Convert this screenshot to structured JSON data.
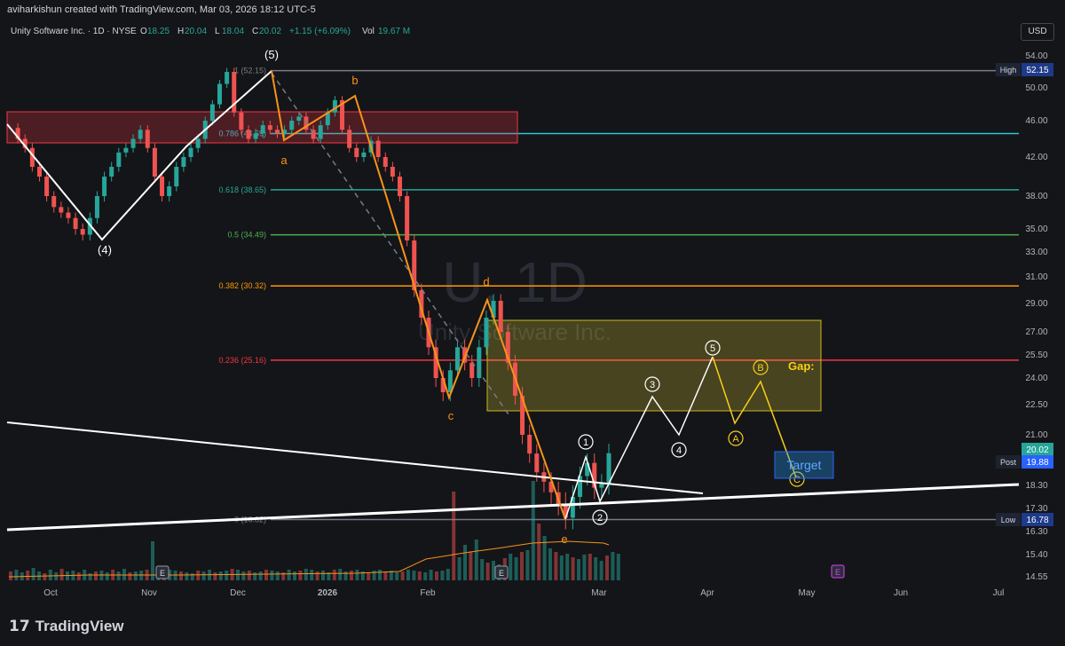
{
  "attribution": "aviharkishun created with TradingView.com, Mar 03, 2026 18:12 UTC-5",
  "currency_button": "USD",
  "brand": "TradingView",
  "colors": {
    "bg": "#141518",
    "up": "#26a69a",
    "down": "#ef5350",
    "orange": "#f7931a",
    "text": "#d1d4dc",
    "white": "#ffffff"
  },
  "chart_data": {
    "type": "candlestick",
    "symbol": "Unity Software Inc. · 1D · NYSE",
    "ohlc": {
      "O": "18.25",
      "H": "20.04",
      "L": "18.04",
      "C": "20.02",
      "change": "+1.15 (+6.09%)",
      "Vol": "19.67 M"
    },
    "watermark": {
      "ticker": "U, 1D",
      "name": "Unity Software Inc."
    },
    "y_axis_ticks": [
      "54.00",
      "50.00",
      "46.00",
      "42.00",
      "38.00",
      "35.00",
      "33.00",
      "31.00",
      "29.00",
      "27.00",
      "25.50",
      "24.00",
      "22.50",
      "21.00",
      "18.30",
      "17.30",
      "16.30",
      "15.40",
      "14.55"
    ],
    "x_axis_ticks": [
      "Oct",
      "Nov",
      "Dec",
      "2026",
      "Feb",
      "Mar",
      "Apr",
      "May",
      "Jun",
      "Jul"
    ],
    "price_labels": [
      {
        "name": "High",
        "value": "52.15"
      },
      {
        "name": "Last",
        "value": "20.02"
      },
      {
        "name": "Post",
        "value": "19.88"
      },
      {
        "name": "Low",
        "value": "16.78"
      }
    ],
    "fib_levels": [
      {
        "label": "1 (52.15)",
        "price": 52.15,
        "color": "#787b86"
      },
      {
        "label": "0.786 (44.59)",
        "price": 44.59,
        "color": "#26c6da"
      },
      {
        "label": "0.618 (38.65)",
        "price": 38.65,
        "color": "#26a69a"
      },
      {
        "label": "0.5 (34.49)",
        "price": 34.49,
        "color": "#4caf50"
      },
      {
        "label": "0.382 (30.32)",
        "price": 30.32,
        "color": "#ff9800"
      },
      {
        "label": "0.236 (25.16)",
        "price": 25.16,
        "color": "#f23645"
      },
      {
        "label": "0 (16.82)",
        "price": 16.82,
        "color": "#787b86"
      }
    ],
    "wave_labels": {
      "white": [
        "(5)",
        "(4)"
      ],
      "orange": [
        "a",
        "b",
        "c",
        "d",
        "e"
      ],
      "circled_white": [
        "1",
        "2",
        "3",
        "4",
        "5"
      ],
      "circled_yellow": [
        "A",
        "B",
        "C"
      ]
    },
    "annotations": {
      "gap": "Gap:",
      "target": "Target"
    },
    "earnings_markers": [
      "E",
      "E",
      "E"
    ]
  }
}
